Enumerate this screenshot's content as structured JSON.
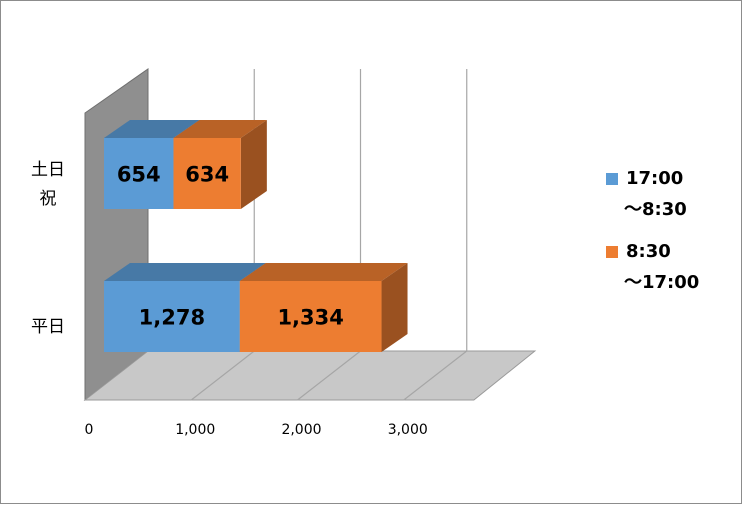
{
  "chart_data": {
    "type": "bar",
    "orientation": "horizontal",
    "stacked": true,
    "style": "3d",
    "title": "",
    "xlabel": "",
    "ylabel": "",
    "categories": [
      {
        "lines": [
          "土日",
          "祝"
        ]
      },
      {
        "lines": [
          "平日"
        ]
      }
    ],
    "series": [
      {
        "name_lines": [
          "17:00",
          "～8:30"
        ],
        "color": "#5b9bd5",
        "values": [
          654,
          1278
        ],
        "labels": [
          "654",
          "1,278"
        ]
      },
      {
        "name_lines": [
          "8:30",
          "～17:00"
        ],
        "color": "#ed7d31",
        "values": [
          634,
          1334
        ],
        "labels": [
          "634",
          "1,334"
        ]
      }
    ],
    "xlim": [
      0,
      3500
    ],
    "xticks": [
      {
        "value": 0,
        "label": "0"
      },
      {
        "value": 1000,
        "label": "1,000"
      },
      {
        "value": 2000,
        "label": "2,000"
      },
      {
        "value": 3000,
        "label": "3,000"
      }
    ],
    "grid": true,
    "legend_position": "right"
  }
}
